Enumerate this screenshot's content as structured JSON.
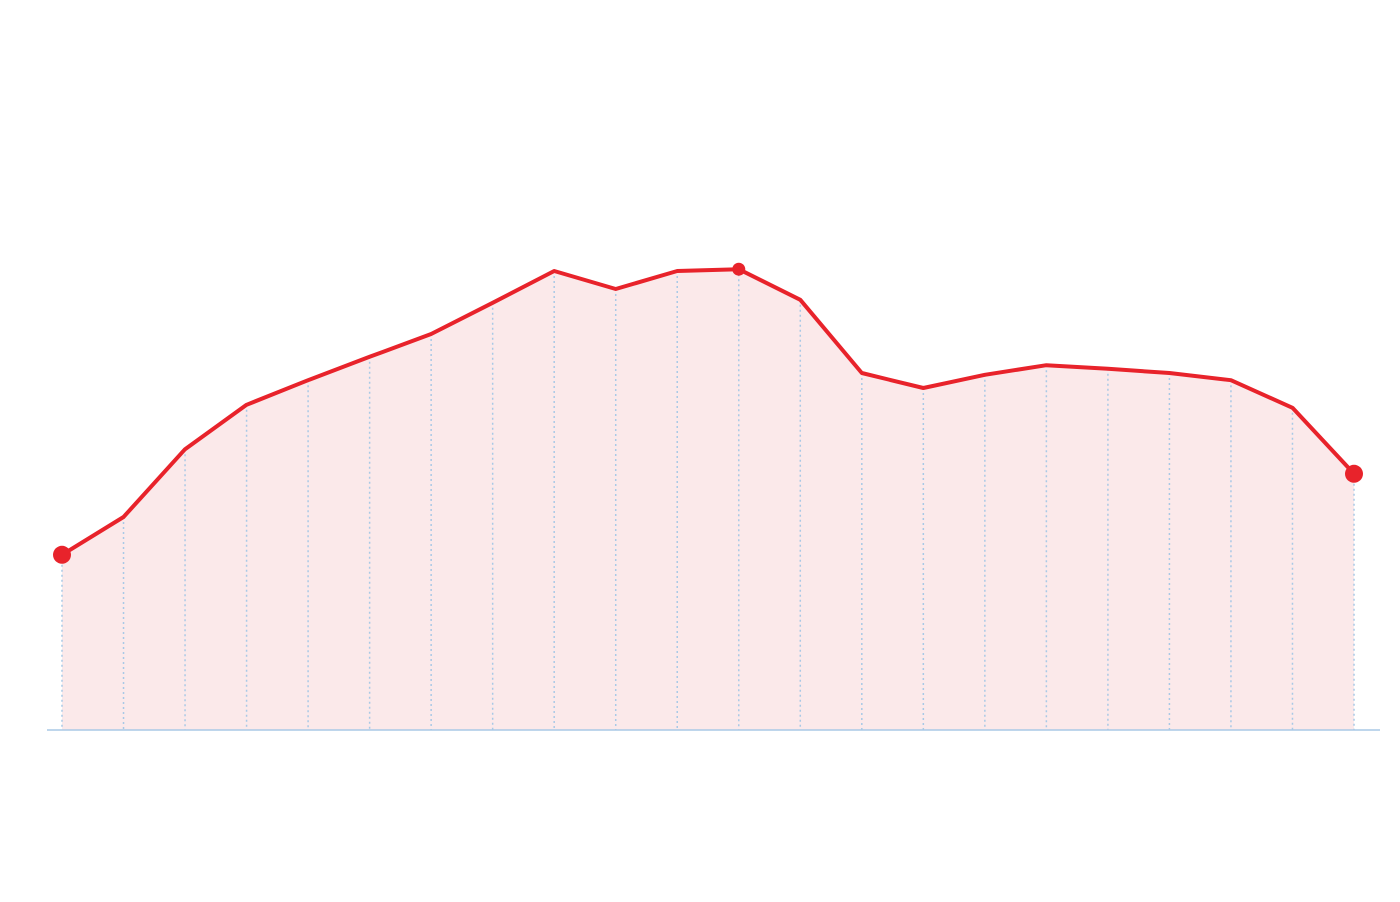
{
  "chart_data": {
    "type": "area",
    "categories": [
      null,
      null,
      null,
      null,
      null,
      null,
      null,
      null,
      null,
      null,
      null,
      null,
      null,
      null,
      null,
      null,
      null,
      null,
      null,
      null,
      null,
      null
    ],
    "values": [
      29.2,
      35.5,
      46.8,
      54.2,
      58.3,
      62.2,
      66,
      71.2,
      76.5,
      73.5,
      76.5,
      76.8,
      71.7,
      59.5,
      57,
      59.2,
      60.8,
      60.2,
      59.5,
      58.3,
      53.7,
      42.7
    ],
    "color": "#e8232b",
    "fill_color": "#fbe9ea",
    "grid_color": "#a9c9e6",
    "ylim": [
      0,
      100
    ],
    "grid": true,
    "highlight_points": [
      "first",
      "max",
      "last"
    ]
  }
}
